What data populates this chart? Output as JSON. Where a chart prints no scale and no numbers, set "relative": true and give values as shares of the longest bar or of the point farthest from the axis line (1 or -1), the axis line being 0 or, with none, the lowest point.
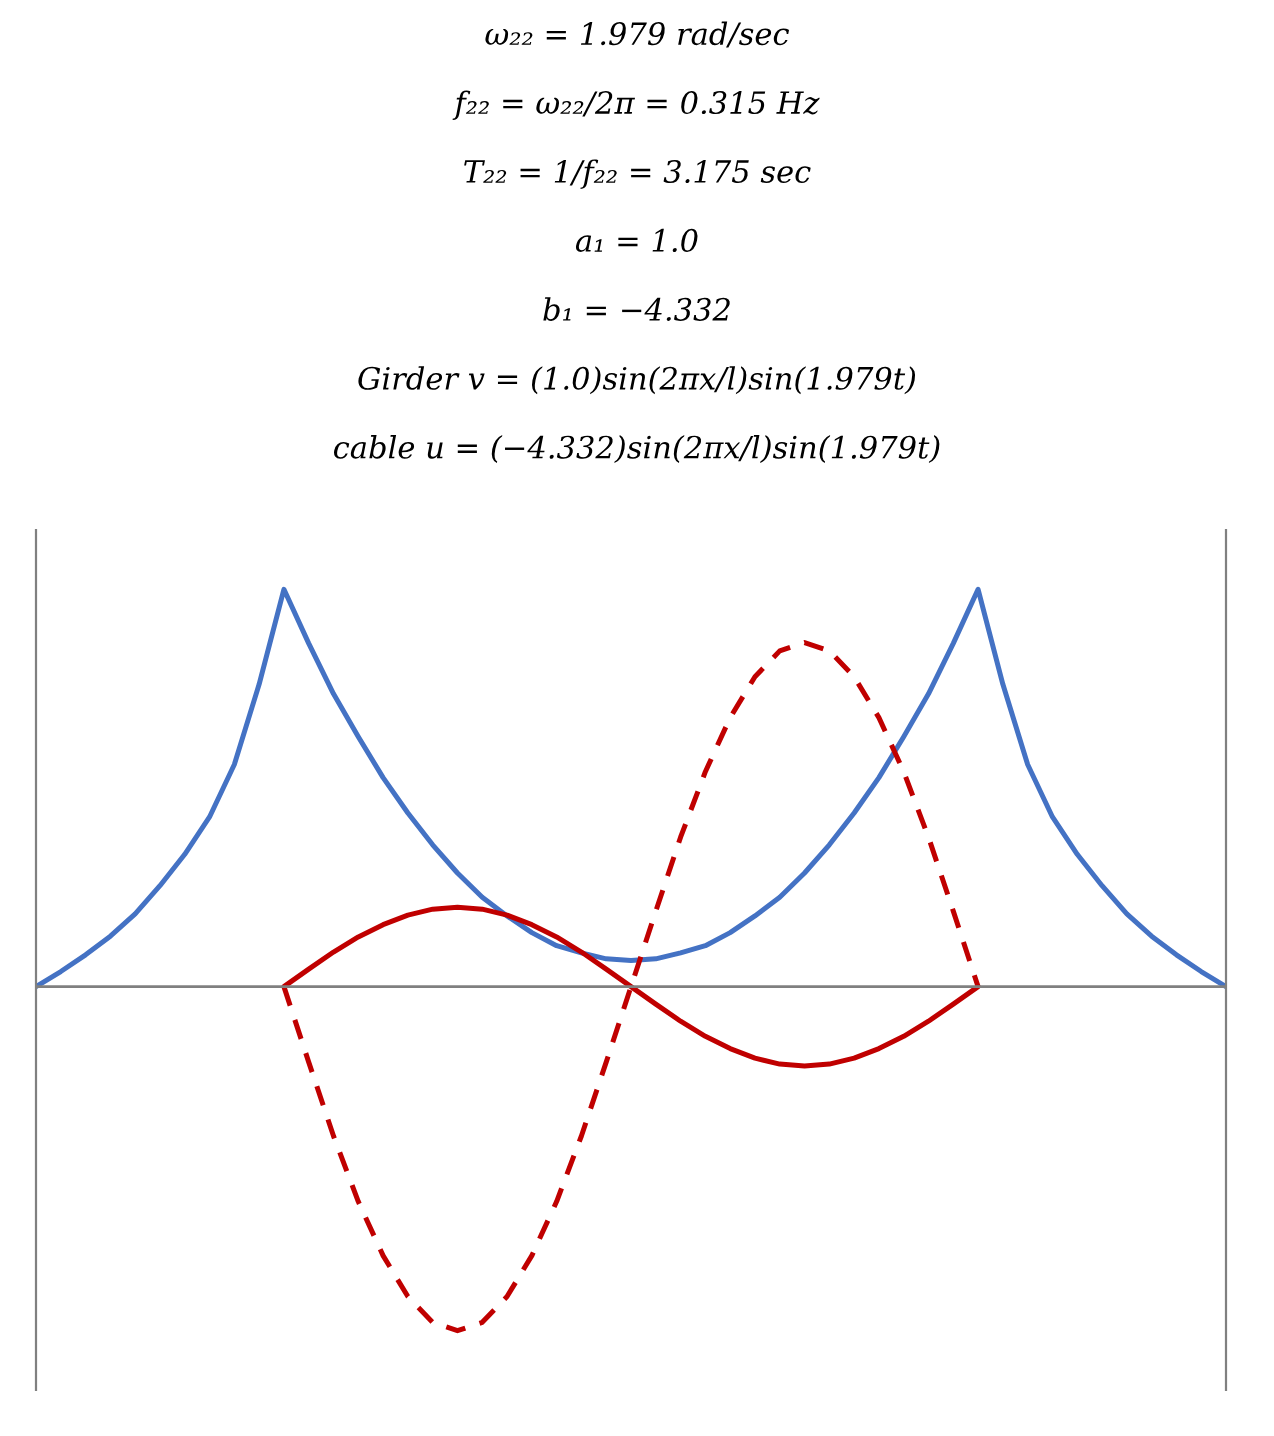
{
  "chart_data": {
    "type": "line",
    "relative": true,
    "annotations": [
      "ω₂₂ = 1.979 rad/sec",
      "f₂₂ = ω₂₂/2π = 0.315 Hz",
      "T₂₂ = 1/f₂₂ = 3.175 sec",
      "a₁ = 1.0",
      "b₁ = −4.332",
      "Girder v = (1.0)sin(2πx/l)sin(1.979t)",
      "cable u = (−4.332)sin(2πx/l)sin(1.979t)"
    ],
    "categories": [
      null,
      null,
      null,
      null,
      null,
      null,
      null,
      null,
      null,
      null,
      null,
      null,
      null,
      null,
      null,
      null,
      null,
      null,
      null,
      null,
      null,
      null,
      null,
      null,
      null,
      null,
      null,
      null,
      null,
      null,
      null,
      null,
      null,
      null,
      null,
      null,
      null,
      null,
      null,
      null,
      null,
      null,
      null,
      null,
      null,
      null,
      null,
      null,
      null
    ],
    "series": [
      {
        "color": "#4472c4",
        "line_style": "solid",
        "values": [
          0,
          0.038,
          0.08,
          0.127,
          0.183,
          0.254,
          0.333,
          0.427,
          0.559,
          0.761,
          1,
          0.864,
          0.737,
          0.629,
          0.526,
          0.437,
          0.357,
          0.286,
          0.225,
          0.178,
          0.136,
          0.103,
          0.085,
          0.07,
          0.066,
          0.07,
          0.085,
          0.103,
          0.136,
          0.178,
          0.225,
          0.286,
          0.357,
          0.437,
          0.526,
          0.629,
          0.737,
          0.864,
          1,
          0.761,
          0.559,
          0.427,
          0.333,
          0.254,
          0.183,
          0.127,
          0.08,
          0.038,
          0
        ]
      },
      {
        "color": "#c00000",
        "line_style": "solid",
        "values": [
          null,
          null,
          null,
          null,
          null,
          null,
          null,
          null,
          null,
          null,
          0,
          0.044,
          0.087,
          0.125,
          0.156,
          0.18,
          0.195,
          0.2,
          0.195,
          0.18,
          0.156,
          0.125,
          0.087,
          0.044,
          0,
          -0.044,
          -0.087,
          -0.125,
          -0.156,
          -0.18,
          -0.195,
          -0.2,
          -0.195,
          -0.18,
          -0.156,
          -0.125,
          -0.087,
          -0.044,
          0,
          null,
          null,
          null,
          null,
          null,
          null,
          null,
          null,
          null,
          null
        ]
      },
      {
        "color": "#c00000",
        "line_style": "dashed",
        "values": [
          null,
          null,
          null,
          null,
          null,
          null,
          null,
          null,
          null,
          null,
          0,
          -0.19,
          -0.376,
          -0.541,
          -0.677,
          -0.78,
          -0.845,
          -0.866,
          -0.845,
          -0.78,
          -0.677,
          -0.541,
          -0.376,
          -0.19,
          0,
          0.19,
          0.376,
          0.541,
          0.677,
          0.78,
          0.845,
          0.866,
          0.845,
          0.78,
          0.677,
          0.541,
          0.376,
          0.19,
          0,
          null,
          null,
          null,
          null,
          null,
          null,
          null,
          null,
          null,
          null
        ]
      }
    ]
  }
}
